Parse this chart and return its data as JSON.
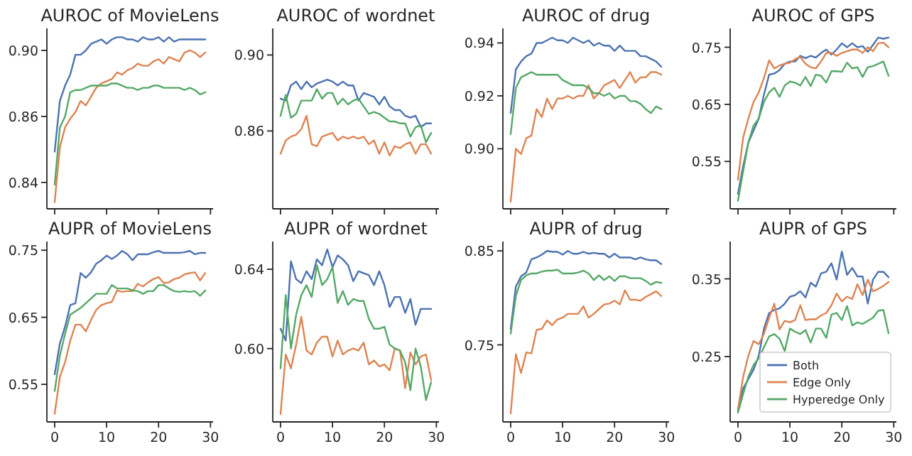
{
  "chart_data": [
    {
      "type": "line",
      "title": "AUROC of MovieLens",
      "x": [
        0,
        1,
        2,
        3,
        4,
        5,
        6,
        7,
        8,
        9,
        10,
        11,
        12,
        13,
        14,
        15,
        16,
        17,
        18,
        19,
        20,
        21,
        22,
        23,
        24,
        25,
        26,
        27,
        28,
        29
      ],
      "xlim": [
        -1.5,
        30.5
      ],
      "xticks": [
        0,
        10,
        20,
        30
      ],
      "ylim": [
        0.823,
        0.905
      ],
      "yticks": [
        {
          "value": 0.835,
          "label": "0.84"
        },
        {
          "value": 0.865,
          "label": "0.86"
        },
        {
          "value": 0.895,
          "label": "0.90"
        }
      ],
      "tick_labels": "y",
      "series": [
        {
          "color": "#4c72b0",
          "values": [
            0.849,
            0.872,
            0.879,
            0.884,
            0.893,
            0.893,
            0.895,
            0.898,
            0.899,
            0.9,
            0.898,
            0.9,
            0.901,
            0.901,
            0.9,
            0.9,
            0.899,
            0.901,
            0.9,
            0.9,
            0.901,
            0.899,
            0.901,
            0.899,
            0.9,
            0.9,
            0.9,
            0.9,
            0.9,
            0.9
          ]
        },
        {
          "color": "#dd8452",
          "values": [
            0.826,
            0.851,
            0.86,
            0.864,
            0.867,
            0.872,
            0.87,
            0.874,
            0.878,
            0.88,
            0.881,
            0.882,
            0.885,
            0.884,
            0.886,
            0.887,
            0.889,
            0.888,
            0.888,
            0.89,
            0.891,
            0.889,
            0.892,
            0.891,
            0.89,
            0.894,
            0.895,
            0.894,
            0.892,
            0.894
          ]
        },
        {
          "color": "#55a868",
          "values": [
            0.834,
            0.86,
            0.865,
            0.876,
            0.877,
            0.877,
            0.878,
            0.879,
            0.879,
            0.879,
            0.879,
            0.88,
            0.88,
            0.879,
            0.878,
            0.878,
            0.877,
            0.878,
            0.878,
            0.879,
            0.879,
            0.878,
            0.878,
            0.878,
            0.878,
            0.877,
            0.878,
            0.877,
            0.875,
            0.876
          ]
        }
      ]
    },
    {
      "type": "line",
      "title": "AUROC of wordnet",
      "x": [
        0,
        1,
        2,
        3,
        4,
        5,
        6,
        7,
        8,
        9,
        10,
        11,
        12,
        13,
        14,
        15,
        16,
        17,
        18,
        19,
        20,
        21,
        22,
        23,
        24,
        25,
        26,
        27,
        28,
        29
      ],
      "xlim": [
        -1.5,
        30.5
      ],
      "xticks": [
        0,
        10,
        20,
        30
      ],
      "ylim": [
        0.819,
        0.914
      ],
      "yticks": [
        0.86,
        {
          "value": 0.9,
          "label": "0.90"
        }
      ],
      "tick_labels": "y",
      "series": [
        {
          "color": "#4c72b0",
          "values": [
            0.877,
            0.876,
            0.884,
            0.886,
            0.882,
            0.886,
            0.883,
            0.885,
            0.886,
            0.887,
            0.886,
            0.884,
            0.886,
            0.884,
            0.884,
            0.876,
            0.88,
            0.879,
            0.878,
            0.874,
            0.878,
            0.873,
            0.871,
            0.871,
            0.868,
            0.867,
            0.868,
            0.862,
            0.864,
            0.864
          ]
        },
        {
          "color": "#dd8452",
          "values": [
            0.848,
            0.855,
            0.857,
            0.858,
            0.861,
            0.868,
            0.853,
            0.852,
            0.857,
            0.858,
            0.859,
            0.855,
            0.857,
            0.856,
            0.857,
            0.856,
            0.857,
            0.853,
            0.855,
            0.848,
            0.854,
            0.847,
            0.852,
            0.851,
            0.853,
            0.854,
            0.848,
            0.853,
            0.853,
            0.848
          ]
        },
        {
          "color": "#55a868",
          "values": [
            0.868,
            0.879,
            0.867,
            0.869,
            0.876,
            0.876,
            0.876,
            0.882,
            0.877,
            0.88,
            0.88,
            0.874,
            0.877,
            0.874,
            0.876,
            0.877,
            0.873,
            0.869,
            0.87,
            0.869,
            0.867,
            0.865,
            0.865,
            0.864,
            0.864,
            0.857,
            0.862,
            0.863,
            0.854,
            0.859
          ]
        }
      ]
    },
    {
      "type": "line",
      "title": "AUROC of drug",
      "x": [
        0,
        1,
        2,
        3,
        4,
        5,
        6,
        7,
        8,
        9,
        10,
        11,
        12,
        13,
        14,
        15,
        16,
        17,
        18,
        19,
        20,
        21,
        22,
        23,
        24,
        25,
        26,
        27,
        28,
        29
      ],
      "xlim": [
        -1.5,
        30.5
      ],
      "xticks": [
        0,
        10,
        20,
        30
      ],
      "ylim": [
        0.8773,
        0.9455
      ],
      "yticks": [
        {
          "value": 0.9,
          "label": "0.90"
        },
        0.92,
        0.94
      ],
      "tick_labels": "y",
      "series": [
        {
          "color": "#4c72b0",
          "values": [
            0.9135,
            0.93,
            0.933,
            0.935,
            0.936,
            0.94,
            0.94,
            0.941,
            0.942,
            0.941,
            0.941,
            0.94,
            0.942,
            0.941,
            0.94,
            0.941,
            0.939,
            0.94,
            0.939,
            0.939,
            0.937,
            0.939,
            0.937,
            0.937,
            0.937,
            0.935,
            0.935,
            0.934,
            0.933,
            0.931
          ]
        },
        {
          "color": "#dd8452",
          "values": [
            0.88,
            0.9,
            0.898,
            0.904,
            0.905,
            0.915,
            0.912,
            0.919,
            0.915,
            0.919,
            0.919,
            0.92,
            0.919,
            0.92,
            0.92,
            0.924,
            0.919,
            0.921,
            0.924,
            0.925,
            0.926,
            0.923,
            0.926,
            0.929,
            0.925,
            0.927,
            0.927,
            0.929,
            0.929,
            0.928
          ]
        },
        {
          "color": "#55a868",
          "values": [
            0.9055,
            0.923,
            0.927,
            0.928,
            0.929,
            0.928,
            0.928,
            0.928,
            0.928,
            0.928,
            0.926,
            0.925,
            0.924,
            0.924,
            0.924,
            0.923,
            0.921,
            0.921,
            0.92,
            0.921,
            0.919,
            0.92,
            0.92,
            0.918,
            0.918,
            0.917,
            0.915,
            0.9135,
            0.916,
            0.915
          ]
        }
      ]
    },
    {
      "type": "line",
      "title": "AUROC of GPS",
      "x": [
        0,
        1,
        2,
        3,
        4,
        5,
        6,
        7,
        8,
        9,
        10,
        11,
        12,
        13,
        14,
        15,
        16,
        17,
        18,
        19,
        20,
        21,
        22,
        23,
        24,
        25,
        26,
        27,
        28,
        29
      ],
      "xlim": [
        -1.5,
        30.5
      ],
      "xticks": [
        0,
        10,
        20,
        30
      ],
      "ylim": [
        0.467,
        0.783
      ],
      "yticks": [
        0.55,
        0.65,
        0.75
      ],
      "tick_labels": "y",
      "series": [
        {
          "color": "#4c72b0",
          "values": [
            0.493,
            0.542,
            0.583,
            0.604,
            0.625,
            0.667,
            0.702,
            0.704,
            0.71,
            0.721,
            0.725,
            0.725,
            0.735,
            0.731,
            0.735,
            0.732,
            0.74,
            0.746,
            0.737,
            0.746,
            0.757,
            0.75,
            0.757,
            0.75,
            0.752,
            0.742,
            0.754,
            0.767,
            0.765,
            0.767
          ]
        },
        {
          "color": "#dd8452",
          "values": [
            0.518,
            0.592,
            0.625,
            0.654,
            0.671,
            0.696,
            0.727,
            0.713,
            0.718,
            0.721,
            0.723,
            0.729,
            0.733,
            0.721,
            0.715,
            0.713,
            0.725,
            0.74,
            0.74,
            0.735,
            0.74,
            0.743,
            0.746,
            0.746,
            0.74,
            0.75,
            0.743,
            0.757,
            0.758,
            0.75
          ]
        },
        {
          "color": "#55a868",
          "values": [
            0.481,
            0.533,
            0.583,
            0.613,
            0.625,
            0.654,
            0.671,
            0.679,
            0.663,
            0.683,
            0.69,
            0.688,
            0.683,
            0.698,
            0.682,
            0.702,
            0.7,
            0.688,
            0.708,
            0.708,
            0.707,
            0.723,
            0.713,
            0.715,
            0.698,
            0.715,
            0.717,
            0.721,
            0.725,
            0.7
          ]
        }
      ]
    },
    {
      "type": "line",
      "title": "AUPR of MovieLens",
      "x": [
        0,
        1,
        2,
        3,
        4,
        5,
        6,
        7,
        8,
        9,
        10,
        11,
        12,
        13,
        14,
        15,
        16,
        17,
        18,
        19,
        20,
        21,
        22,
        23,
        24,
        25,
        26,
        27,
        28,
        29
      ],
      "xlim": [
        -1.5,
        30.5
      ],
      "xticks": [
        0,
        10,
        20,
        30
      ],
      "ylim": [
        0.494,
        0.763
      ],
      "yticks": [
        0.55,
        0.65,
        0.75
      ],
      "series": [
        {
          "color": "#4c72b0",
          "values": [
            0.565,
            0.611,
            0.636,
            0.668,
            0.671,
            0.716,
            0.709,
            0.717,
            0.73,
            0.735,
            0.742,
            0.737,
            0.742,
            0.749,
            0.744,
            0.735,
            0.744,
            0.744,
            0.744,
            0.747,
            0.749,
            0.746,
            0.746,
            0.746,
            0.746,
            0.747,
            0.749,
            0.744,
            0.746,
            0.746
          ]
        },
        {
          "color": "#dd8452",
          "values": [
            0.506,
            0.561,
            0.583,
            0.615,
            0.639,
            0.639,
            0.629,
            0.646,
            0.661,
            0.668,
            0.671,
            0.673,
            0.69,
            0.688,
            0.689,
            0.689,
            0.7,
            0.696,
            0.702,
            0.707,
            0.71,
            0.701,
            0.702,
            0.707,
            0.709,
            0.714,
            0.716,
            0.717,
            0.705,
            0.716
          ]
        },
        {
          "color": "#55a868",
          "values": [
            0.54,
            0.593,
            0.625,
            0.654,
            0.659,
            0.664,
            0.671,
            0.678,
            0.685,
            0.685,
            0.685,
            0.698,
            0.693,
            0.693,
            0.693,
            0.69,
            0.689,
            0.685,
            0.689,
            0.689,
            0.698,
            0.698,
            0.693,
            0.689,
            0.688,
            0.689,
            0.688,
            0.689,
            0.682,
            0.69
          ]
        }
      ]
    },
    {
      "type": "line",
      "title": "AUPR of wordnet",
      "x": [
        0,
        1,
        2,
        3,
        4,
        5,
        6,
        7,
        8,
        9,
        10,
        11,
        12,
        13,
        14,
        15,
        16,
        17,
        18,
        19,
        20,
        21,
        22,
        23,
        24,
        25,
        26,
        27,
        28,
        29
      ],
      "xlim": [
        -1.5,
        30.5
      ],
      "xticks": [
        0,
        10,
        20,
        30
      ],
      "ylim": [
        0.563,
        0.654
      ],
      "yticks": [
        {
          "value": 0.6,
          "label": "0.60"
        },
        0.64
      ],
      "series": [
        {
          "color": "#4c72b0",
          "values": [
            0.61,
            0.604,
            0.644,
            0.635,
            0.633,
            0.639,
            0.635,
            0.645,
            0.642,
            0.65,
            0.641,
            0.647,
            0.645,
            0.642,
            0.634,
            0.639,
            0.638,
            0.637,
            0.632,
            0.639,
            0.632,
            0.621,
            0.626,
            0.626,
            0.618,
            0.625,
            0.612,
            0.62,
            0.62,
            0.62
          ]
        },
        {
          "color": "#dd8452",
          "values": [
            0.567,
            0.597,
            0.59,
            0.602,
            0.616,
            0.599,
            0.597,
            0.603,
            0.606,
            0.606,
            0.596,
            0.604,
            0.597,
            0.599,
            0.6,
            0.599,
            0.603,
            0.592,
            0.594,
            0.591,
            0.592,
            0.589,
            0.6,
            0.599,
            0.58,
            0.598,
            0.592,
            0.596,
            0.597,
            0.584
          ]
        },
        {
          "color": "#55a868",
          "values": [
            0.59,
            0.627,
            0.6,
            0.617,
            0.627,
            0.632,
            0.626,
            0.642,
            0.632,
            0.635,
            0.641,
            0.623,
            0.629,
            0.622,
            0.625,
            0.624,
            0.624,
            0.615,
            0.61,
            0.61,
            0.611,
            0.602,
            0.6,
            0.599,
            0.593,
            0.579,
            0.6,
            0.591,
            0.574,
            0.583
          ]
        }
      ]
    },
    {
      "type": "line",
      "title": "AUPR of drug",
      "x": [
        0,
        1,
        2,
        3,
        4,
        5,
        6,
        7,
        8,
        9,
        10,
        11,
        12,
        13,
        14,
        15,
        16,
        17,
        18,
        19,
        20,
        21,
        22,
        23,
        24,
        25,
        26,
        27,
        28,
        29
      ],
      "xlim": [
        -1.5,
        30.5
      ],
      "xticks": [
        0,
        10,
        20,
        30
      ],
      "ylim": [
        0.668,
        0.86
      ],
      "yticks": [
        0.75,
        0.85
      ],
      "series": [
        {
          "color": "#4c72b0",
          "values": [
            0.767,
            0.812,
            0.823,
            0.827,
            0.841,
            0.843,
            0.846,
            0.85,
            0.849,
            0.849,
            0.846,
            0.85,
            0.847,
            0.847,
            0.849,
            0.847,
            0.848,
            0.847,
            0.847,
            0.843,
            0.847,
            0.843,
            0.843,
            0.843,
            0.841,
            0.843,
            0.841,
            0.84,
            0.84,
            0.836
          ]
        },
        {
          "color": "#dd8452",
          "values": [
            0.677,
            0.74,
            0.72,
            0.742,
            0.741,
            0.766,
            0.767,
            0.776,
            0.771,
            0.777,
            0.779,
            0.783,
            0.783,
            0.783,
            0.791,
            0.779,
            0.783,
            0.788,
            0.793,
            0.794,
            0.797,
            0.793,
            0.808,
            0.798,
            0.798,
            0.797,
            0.801,
            0.804,
            0.807,
            0.802
          ]
        },
        {
          "color": "#55a868",
          "values": [
            0.762,
            0.802,
            0.819,
            0.824,
            0.826,
            0.826,
            0.828,
            0.829,
            0.829,
            0.83,
            0.826,
            0.826,
            0.826,
            0.827,
            0.829,
            0.826,
            0.819,
            0.824,
            0.819,
            0.823,
            0.818,
            0.823,
            0.823,
            0.821,
            0.821,
            0.821,
            0.818,
            0.814,
            0.817,
            0.816
          ]
        }
      ]
    },
    {
      "type": "line",
      "title": "AUPR of GPS",
      "x": [
        0,
        1,
        2,
        3,
        4,
        5,
        6,
        7,
        8,
        9,
        10,
        11,
        12,
        13,
        14,
        15,
        16,
        17,
        18,
        19,
        20,
        21,
        22,
        23,
        24,
        25,
        26,
        27,
        28,
        29
      ],
      "xlim": [
        -1.5,
        30.5
      ],
      "xticks": [
        0,
        10,
        20,
        30
      ],
      "ylim": [
        0.166,
        0.398
      ],
      "yticks": [
        0.25,
        0.35
      ],
      "legend": "bottom right",
      "series": [
        {
          "name": "Both",
          "color": "#4c72b0",
          "values": [
            0.181,
            0.209,
            0.221,
            0.233,
            0.251,
            0.286,
            0.306,
            0.31,
            0.312,
            0.318,
            0.327,
            0.329,
            0.334,
            0.326,
            0.345,
            0.34,
            0.357,
            0.359,
            0.37,
            0.349,
            0.385,
            0.355,
            0.364,
            0.353,
            0.353,
            0.318,
            0.349,
            0.359,
            0.359,
            0.352
          ]
        },
        {
          "name": "Edge Only",
          "color": "#dd8452",
          "values": [
            0.182,
            0.224,
            0.251,
            0.27,
            0.266,
            0.279,
            0.3,
            0.318,
            0.285,
            0.296,
            0.294,
            0.297,
            0.316,
            0.297,
            0.298,
            0.298,
            0.303,
            0.306,
            0.316,
            0.331,
            0.321,
            0.327,
            0.324,
            0.343,
            0.329,
            0.349,
            0.334,
            0.337,
            0.341,
            0.346
          ]
        },
        {
          "name": "Hyperedge Only",
          "color": "#55a868",
          "values": [
            0.178,
            0.202,
            0.224,
            0.239,
            0.248,
            0.262,
            0.276,
            0.279,
            0.273,
            0.257,
            0.286,
            0.282,
            0.279,
            0.284,
            0.268,
            0.286,
            0.286,
            0.274,
            0.304,
            0.306,
            0.297,
            0.315,
            0.29,
            0.294,
            0.292,
            0.296,
            0.3,
            0.309,
            0.31,
            0.28
          ]
        }
      ]
    }
  ]
}
